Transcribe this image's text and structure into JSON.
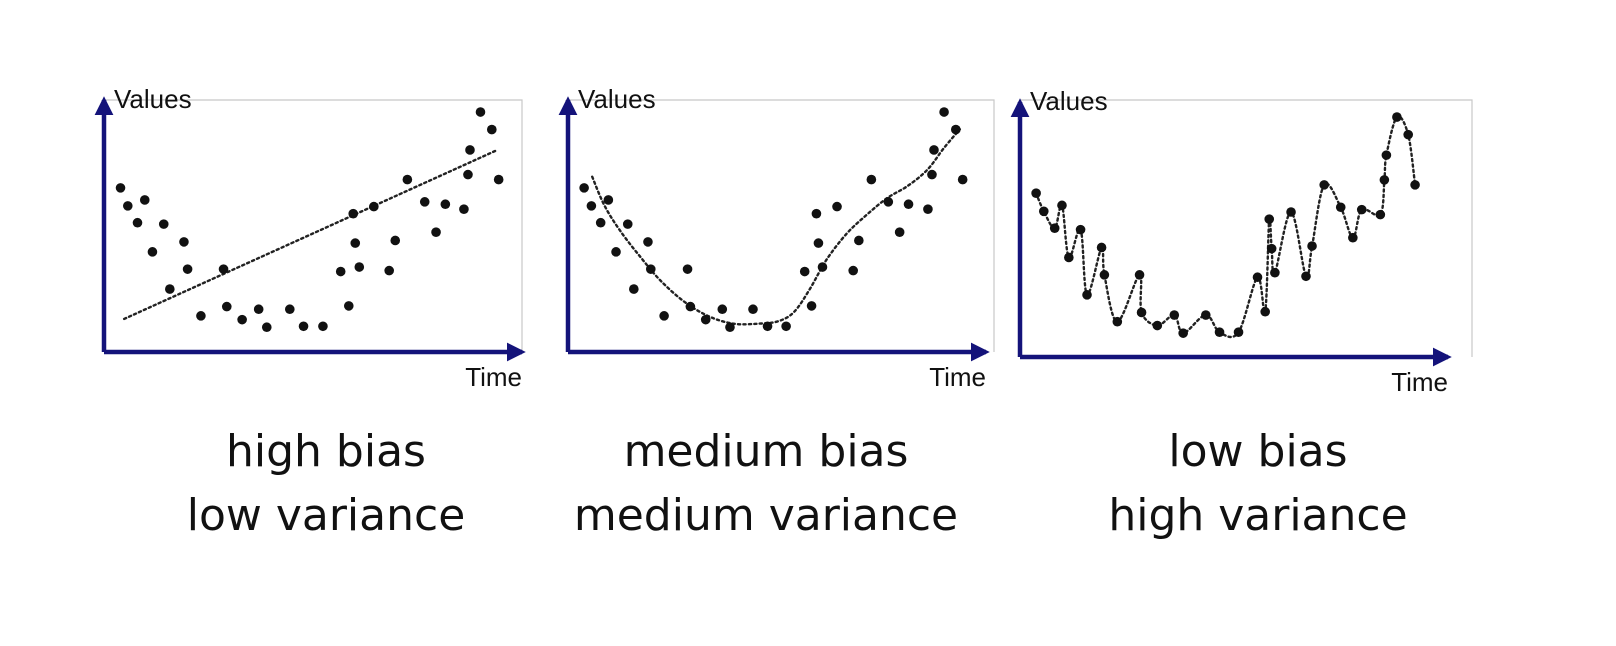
{
  "colors": {
    "axis": "#14137a",
    "point": "#111111",
    "fit": "#222222",
    "frame": "#c8c8c8",
    "text": "#111111"
  },
  "chart_data": [
    {
      "type": "scatter",
      "xlabel": "Time",
      "ylabel": "Values",
      "grid": false,
      "xlim": [
        0,
        100
      ],
      "ylim": [
        0,
        100
      ],
      "fit": "linear",
      "caption": [
        "high bias",
        "low variance"
      ],
      "points": [
        [
          3.1,
          66.3
        ],
        [
          4.9,
          58.7
        ],
        [
          7.3,
          51.6
        ],
        [
          9.1,
          61.2
        ],
        [
          11.0,
          39.3
        ],
        [
          13.8,
          51.0
        ],
        [
          15.3,
          23.6
        ],
        [
          18.8,
          43.5
        ],
        [
          19.7,
          32.0
        ],
        [
          23.0,
          12.3
        ],
        [
          28.6,
          32.0
        ],
        [
          29.4,
          16.2
        ],
        [
          33.2,
          10.7
        ],
        [
          37.3,
          15.1
        ],
        [
          39.3,
          7.5
        ],
        [
          45.0,
          15.1
        ],
        [
          48.4,
          7.9
        ],
        [
          53.2,
          7.9
        ],
        [
          57.6,
          31.0
        ],
        [
          59.6,
          16.5
        ],
        [
          60.7,
          55.4
        ],
        [
          61.2,
          43.0
        ],
        [
          62.2,
          32.9
        ],
        [
          65.8,
          58.4
        ],
        [
          69.6,
          31.4
        ],
        [
          71.1,
          44.1
        ],
        [
          74.1,
          69.8
        ],
        [
          78.4,
          60.4
        ],
        [
          81.2,
          47.6
        ],
        [
          83.5,
          59.4
        ],
        [
          88.1,
          57.3
        ],
        [
          89.1,
          71.9
        ],
        [
          89.6,
          82.3
        ],
        [
          92.2,
          98.3
        ],
        [
          95.0,
          90.9
        ],
        [
          96.7,
          69.8
        ]
      ],
      "fit_line": [
        [
          4,
          11
        ],
        [
          96,
          82
        ]
      ]
    },
    {
      "type": "scatter",
      "xlabel": "Time",
      "ylabel": "Values",
      "grid": false,
      "xlim": [
        0,
        100
      ],
      "ylim": [
        0,
        100
      ],
      "fit": "polynomial",
      "caption": [
        "medium bias",
        "medium variance"
      ],
      "points": [
        [
          3.0,
          66.3
        ],
        [
          4.8,
          58.7
        ],
        [
          7.1,
          51.6
        ],
        [
          9.0,
          61.2
        ],
        [
          10.9,
          39.3
        ],
        [
          13.8,
          51.0
        ],
        [
          15.3,
          23.6
        ],
        [
          18.8,
          43.5
        ],
        [
          19.5,
          32.0
        ],
        [
          22.8,
          12.3
        ],
        [
          28.6,
          32.0
        ],
        [
          29.3,
          16.2
        ],
        [
          33.1,
          10.7
        ],
        [
          37.2,
          15.1
        ],
        [
          39.1,
          7.5
        ],
        [
          44.8,
          15.1
        ],
        [
          48.4,
          7.9
        ],
        [
          53.0,
          7.9
        ],
        [
          57.6,
          31.0
        ],
        [
          59.3,
          16.5
        ],
        [
          60.5,
          55.4
        ],
        [
          61.0,
          43.0
        ],
        [
          62.0,
          32.9
        ],
        [
          65.6,
          58.4
        ],
        [
          69.6,
          31.4
        ],
        [
          71.0,
          44.1
        ],
        [
          74.1,
          69.8
        ],
        [
          78.3,
          60.4
        ],
        [
          81.1,
          47.6
        ],
        [
          83.3,
          59.4
        ],
        [
          88.1,
          57.3
        ],
        [
          89.1,
          71.9
        ],
        [
          89.6,
          82.3
        ],
        [
          92.1,
          98.3
        ],
        [
          95.0,
          90.9
        ],
        [
          96.7,
          69.8
        ]
      ],
      "fit_curve": [
        [
          5,
          71
        ],
        [
          8,
          59
        ],
        [
          12,
          48
        ],
        [
          17,
          37
        ],
        [
          22,
          27
        ],
        [
          28,
          18
        ],
        [
          34,
          12
        ],
        [
          40,
          9
        ],
        [
          46,
          9
        ],
        [
          51,
          10
        ],
        [
          55,
          14
        ],
        [
          59,
          24
        ],
        [
          63,
          36
        ],
        [
          68,
          47
        ],
        [
          73,
          55
        ],
        [
          78,
          62
        ],
        [
          83,
          67
        ],
        [
          88,
          74
        ],
        [
          92,
          83
        ],
        [
          96,
          91
        ]
      ]
    },
    {
      "type": "scatter",
      "xlabel": "Time",
      "ylabel": "Values",
      "grid": false,
      "xlim": [
        0,
        100
      ],
      "ylim": [
        0,
        100
      ],
      "fit": "interpolating",
      "caption": [
        "low bias",
        "high variance"
      ],
      "points": [
        [
          3.0,
          66.3
        ],
        [
          4.9,
          58.7
        ],
        [
          7.6,
          51.6
        ],
        [
          9.4,
          61.2
        ],
        [
          11.1,
          39.3
        ],
        [
          14.0,
          51.0
        ],
        [
          15.6,
          23.6
        ],
        [
          19.2,
          43.5
        ],
        [
          19.9,
          32.0
        ],
        [
          23.1,
          12.3
        ],
        [
          28.6,
          32.0
        ],
        [
          29.1,
          16.2
        ],
        [
          33.0,
          10.7
        ],
        [
          37.2,
          15.1
        ],
        [
          39.4,
          7.5
        ],
        [
          45.0,
          15.1
        ],
        [
          48.4,
          7.9
        ],
        [
          53.1,
          7.9
        ],
        [
          57.8,
          31.0
        ],
        [
          59.7,
          16.5
        ],
        [
          60.7,
          55.4
        ],
        [
          61.3,
          43.0
        ],
        [
          62.1,
          32.9
        ],
        [
          66.1,
          58.4
        ],
        [
          69.8,
          31.4
        ],
        [
          71.3,
          44.1
        ],
        [
          74.3,
          69.8
        ],
        [
          78.4,
          60.4
        ],
        [
          81.4,
          47.6
        ],
        [
          83.6,
          59.4
        ],
        [
          88.2,
          57.3
        ],
        [
          89.2,
          71.9
        ],
        [
          89.7,
          82.3
        ],
        [
          92.3,
          98.3
        ],
        [
          95.1,
          90.9
        ],
        [
          96.8,
          69.8
        ]
      ]
    }
  ]
}
